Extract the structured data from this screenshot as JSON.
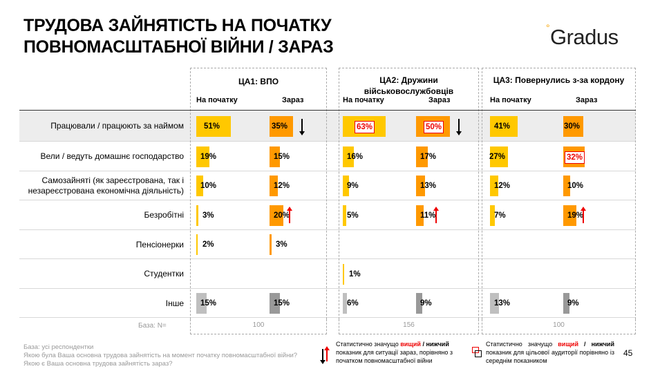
{
  "title": [
    "ТРУДОВА ЗАЙНЯТІСТЬ НА ПОЧАТКУ",
    "ПОВНОМАСШТАБНОЇ ВІЙНИ / ЗАРАЗ"
  ],
  "logo": "Gradus",
  "groups": [
    {
      "name": "ЦА1: ВПО",
      "start": "На початку",
      "now": "Зараз",
      "base": "100"
    },
    {
      "name": "ЦА2: Дружини військовослужбовців",
      "start": "На початку",
      "now": "Зараз",
      "base": "156"
    },
    {
      "name": "ЦА3: Повернулись з-за кордону",
      "start": "На початку",
      "now": "Зараз",
      "base": "100"
    }
  ],
  "colors": {
    "start": "#FFC800",
    "now": "#FF9900",
    "other_start": "#BFBFBF",
    "other_now": "#999999",
    "significant": "#E00000"
  },
  "rows": [
    {
      "label": "Працювали / працюють за наймом",
      "values": [
        [
          51,
          35
        ],
        [
          63,
          50
        ],
        [
          41,
          30
        ]
      ],
      "arrows": [
        "down",
        "down",
        null
      ],
      "boxed": [
        [],
        [
          "start",
          "now"
        ],
        []
      ]
    },
    {
      "label": "Вели / ведуть домашнє господарство",
      "values": [
        [
          19,
          15
        ],
        [
          16,
          17
        ],
        [
          27,
          32
        ]
      ],
      "arrows": [
        null,
        null,
        null
      ],
      "boxed": [
        [],
        [],
        [
          "now"
        ]
      ]
    },
    {
      "label": "Самозайняті (як зареєстрована, так і незареєстрована економічна діяльність)",
      "values": [
        [
          10,
          12
        ],
        [
          9,
          13
        ],
        [
          12,
          10
        ]
      ],
      "arrows": [
        null,
        null,
        null
      ],
      "boxed": [
        [],
        [],
        []
      ]
    },
    {
      "label": "Безробітні",
      "values": [
        [
          3,
          20
        ],
        [
          5,
          11
        ],
        [
          7,
          19
        ]
      ],
      "arrows": [
        "up",
        "up",
        "up"
      ],
      "boxed": [
        [],
        [],
        []
      ]
    },
    {
      "label": "Пенсіонерки",
      "values": [
        [
          2,
          3
        ],
        [
          null,
          null
        ],
        [
          null,
          null
        ]
      ],
      "arrows": [
        null,
        null,
        null
      ],
      "boxed": [
        [],
        [],
        []
      ]
    },
    {
      "label": "Студентки",
      "values": [
        [
          null,
          null
        ],
        [
          1,
          null
        ],
        [
          null,
          null
        ]
      ],
      "arrows": [
        null,
        null,
        null
      ],
      "boxed": [
        [],
        [],
        []
      ]
    },
    {
      "label": "Інше",
      "values": [
        [
          15,
          15
        ],
        [
          6,
          9
        ],
        [
          13,
          9
        ]
      ],
      "arrows": [
        null,
        null,
        null
      ],
      "boxed": [
        [],
        [],
        []
      ],
      "other": true
    }
  ],
  "base_label": "База: N=",
  "footnote": [
    "База: усі респондентки",
    "Якою була Ваша основна трудова зайнятість на момент початку повномасштабної війни?",
    "Якою є Ваша основна трудова зайнятість зараз?"
  ],
  "legend1": {
    "pre": "Статистично значущо ",
    "high": "вищий",
    "sep": " / ",
    "low": "нижчий",
    "rest": " показник для ситуації зараз, порівняно з початком повномасштабної війни"
  },
  "legend2": {
    "pre": "Статистично значущо ",
    "high": "вищий",
    "sep": " / ",
    "low": "нижчий",
    "rest": " показник для цільової аудиторії порівняно із середнім показником"
  },
  "page_number": "45"
}
